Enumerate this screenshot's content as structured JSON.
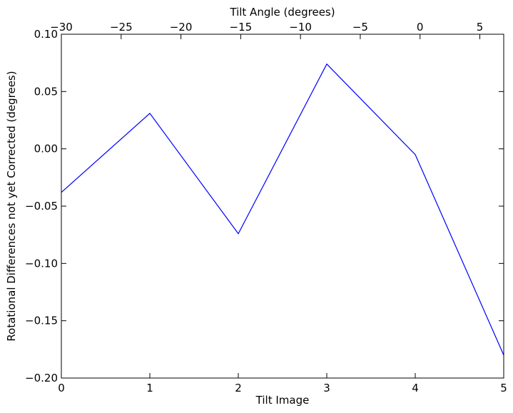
{
  "chart_data": {
    "type": "line",
    "xlabel": "Tilt Image",
    "ylabel": "Rotational Differences not yet Corrected (degrees)",
    "x2label": "Tilt Angle (degrees)",
    "xlim": [
      0,
      5
    ],
    "ylim": [
      -0.2,
      0.1
    ],
    "x2lim": [
      -30,
      7
    ],
    "xticks": [
      0,
      1,
      2,
      3,
      4,
      5
    ],
    "xtick_labels": [
      "0",
      "1",
      "2",
      "3",
      "4",
      "5"
    ],
    "yticks": [
      0.1,
      0.05,
      0.0,
      -0.05,
      -0.1,
      -0.15,
      -0.2
    ],
    "ytick_labels": [
      "0.10",
      "0.05",
      "0.00",
      "−0.05",
      "−0.10",
      "−0.15",
      "−0.20"
    ],
    "x2ticks": [
      -30,
      -25,
      -20,
      -15,
      -10,
      -5,
      0,
      5
    ],
    "x2tick_labels": [
      "−30",
      "−25",
      "−20",
      "−15",
      "−10",
      "−5",
      "0",
      "5"
    ],
    "grid": false,
    "series": [
      {
        "color": "#0000ff",
        "x": [
          0,
          1,
          2,
          3,
          4,
          5
        ],
        "y": [
          -0.038,
          0.031,
          -0.074,
          0.074,
          -0.005,
          -0.18
        ]
      }
    ]
  }
}
